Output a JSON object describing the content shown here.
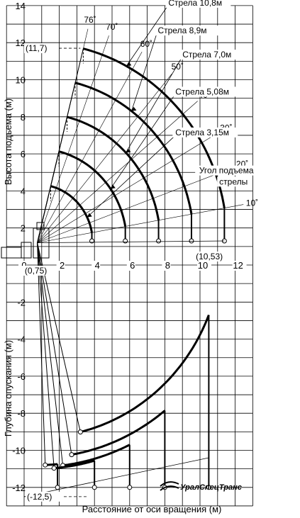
{
  "chart_data": {
    "type": "line",
    "title": "",
    "xlabel": "Расстояние от оси вращения (м)",
    "ylabel_top": "Высота подъема (м)",
    "ylabel_bottom": "Глубина опускания (м)",
    "xlim": [
      -1,
      13
    ],
    "ylim": [
      -13,
      14
    ],
    "x_ticks": [
      0,
      2,
      4,
      6,
      8,
      10,
      12
    ],
    "y_ticks": [
      14,
      12,
      10,
      8,
      6,
      4,
      2,
      -2,
      -4,
      -6,
      -8,
      -10,
      -12
    ],
    "grid": true,
    "lift_curves": [
      {
        "name": "Стрела 3,15м",
        "pivot": [
          0.75,
          1.2
        ],
        "length": 3.15,
        "angle_range": [
          10,
          76
        ],
        "hook_drop_to": 1.3
      },
      {
        "name": "Стрела 5,08м",
        "pivot": [
          0.75,
          1.2
        ],
        "length": 5.08,
        "angle_range": [
          10,
          76
        ],
        "hook_drop_to": 1.3
      },
      {
        "name": "Стрела 7,0м",
        "pivot": [
          0.75,
          1.2
        ],
        "length": 7.0,
        "angle_range": [
          10,
          76
        ],
        "hook_drop_to": 1.3
      },
      {
        "name": "Стрела 8,9м",
        "pivot": [
          0.75,
          1.2
        ],
        "length": 8.9,
        "angle_range": [
          10,
          76
        ],
        "hook_drop_to": 1.3
      },
      {
        "name": "Стрела 10,8м",
        "pivot": [
          0.75,
          1.2
        ],
        "length": 10.8,
        "angle_range": [
          10,
          76
        ],
        "hook_drop_to": 1.3
      }
    ],
    "depth_curves": [
      {
        "pivot": [
          0.75,
          1.2
        ],
        "radius": 10.5,
        "x_start": 3.2,
        "x_end": 10.5,
        "hook_drop_to": -12.0
      },
      {
        "pivot": [
          0.75,
          1.2
        ],
        "radius": 11.6,
        "x_start": 2.7,
        "x_end": 8.0,
        "hook_drop_to": -12.0
      },
      {
        "pivot": [
          0.75,
          1.2
        ],
        "radius": 12.1,
        "x_start": 2.2,
        "x_end": 6.0,
        "hook_drop_to": -12.0
      },
      {
        "pivot": [
          0.75,
          1.2
        ],
        "radius": 12.2,
        "x_start": 1.7,
        "x_end": 4.0,
        "hook_drop_to": -12.0
      },
      {
        "pivot": [
          0.75,
          1.2
        ],
        "radius": 12.0,
        "x_start": 1.2,
        "x_end": 1.9,
        "hook_drop_to": -12.0
      }
    ],
    "angle_labels": [
      {
        "text": "76˚",
        "angle": 76
      },
      {
        "text": "70˚",
        "angle": 70
      },
      {
        "text": "60˚",
        "angle": 60
      },
      {
        "text": "50˚",
        "angle": 50
      },
      {
        "text": "40˚",
        "angle": 40
      },
      {
        "text": "30˚",
        "angle": 30
      },
      {
        "text": "20˚",
        "angle": 20
      },
      {
        "text": "10˚",
        "angle": 10
      }
    ],
    "annotations": [
      {
        "text": "(11,7)",
        "x": 0,
        "y": 11.7
      },
      {
        "text": "(0,75)",
        "x": 0.75,
        "y": 0
      },
      {
        "text": "(10,53)",
        "x": 10.53,
        "y": 0
      },
      {
        "text": "(-12,5)",
        "x": 0,
        "y": -12.5
      },
      {
        "text": "Угол подъема",
        "x": 11.5,
        "y": 5.1
      },
      {
        "text": "стрелы",
        "x": 11.5,
        "y": 4.5
      }
    ]
  },
  "logo": {
    "text": "УралСпецТранс"
  }
}
